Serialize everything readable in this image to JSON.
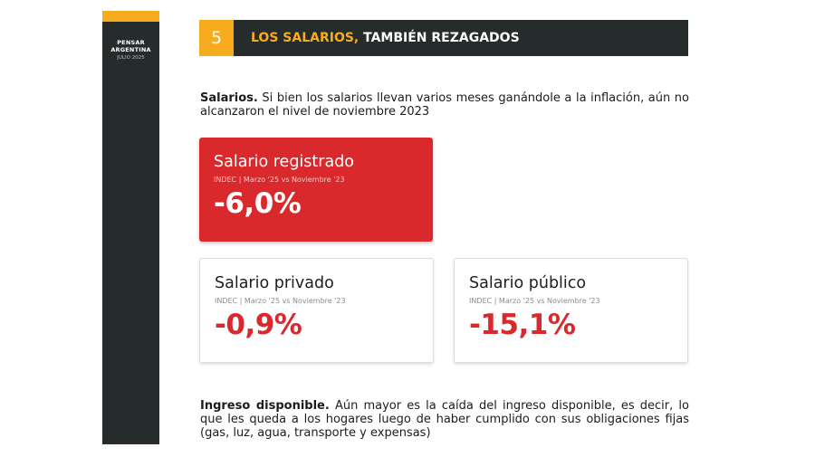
{
  "sidebar": {
    "brand_line1": "PENSAR",
    "brand_line2": "ARGENTINA",
    "date": "JULIO 2025",
    "accent_color": "#f6ac1e",
    "background_color": "#262b2c"
  },
  "header": {
    "number": "5",
    "title_highlight": "LOS SALARIOS,",
    "title_rest": " TAMBIÉN REZAGADOS"
  },
  "intro": {
    "lead": "Salarios.",
    "text": " Si bien los salarios llevan varios meses ganándole a la inflación, aún no alcanzaron el nivel de noviembre 2023"
  },
  "cards": [
    {
      "title": "Salario registrado",
      "source": "INDEC | Marzo '25 vs Noviembre '23",
      "value": "-6,0%",
      "style": "highlight",
      "color": "#d9292d"
    },
    {
      "title": "Salario privado",
      "source": "INDEC | Marzo '25 vs Noviembre '23",
      "value": "-0,9%",
      "style": "outline"
    },
    {
      "title": "Salario público",
      "source": "INDEC | Marzo '25 vs Noviembre '23",
      "value": "-15,1%",
      "style": "outline"
    }
  ],
  "footer_note": {
    "lead": "Ingreso disponible.",
    "text": " Aún mayor es la caída del ingreso disponible, es decir, lo que les queda a los hogares luego de haber cumplido con sus obligaciones fijas (gas, luz, agua, transporte y expensas)"
  }
}
